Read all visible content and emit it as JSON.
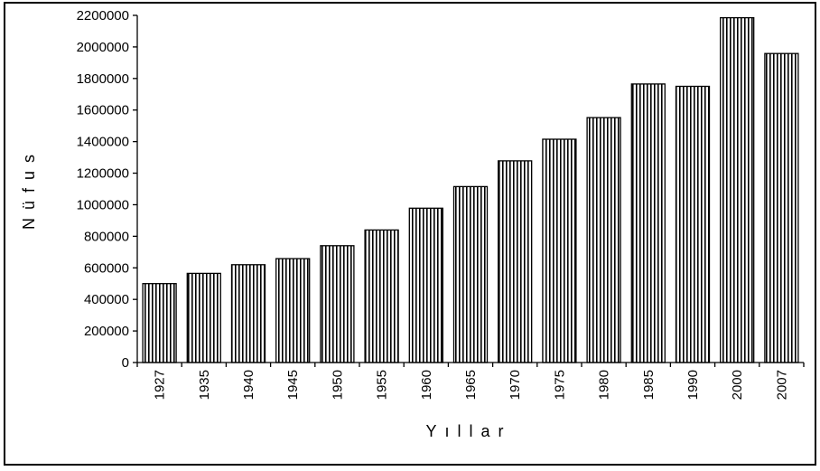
{
  "chart_data": {
    "type": "bar",
    "title": "",
    "xlabel": "Yıllar",
    "ylabel": "Nüfus",
    "categories": [
      "1927",
      "1935",
      "1940",
      "1945",
      "1950",
      "1955",
      "1960",
      "1965",
      "1970",
      "1975",
      "1980",
      "1985",
      "1990",
      "2000",
      "2007"
    ],
    "values": [
      500000,
      565000,
      620000,
      658000,
      740000,
      840000,
      978000,
      1115000,
      1278000,
      1415000,
      1552000,
      1765000,
      1750000,
      2185000,
      1958000
    ],
    "ylim": [
      0,
      2200000
    ],
    "yticks": [
      "0",
      "200000",
      "400000",
      "600000",
      "800000",
      "1000000",
      "1200000",
      "1400000",
      "1600000",
      "1800000",
      "2000000",
      "2200000"
    ],
    "grid": false,
    "legend": "none",
    "bar_fill": "vertical-stripes",
    "colors": {
      "stripe": "#000000",
      "background": "#ffffff",
      "axis": "#000000"
    }
  }
}
